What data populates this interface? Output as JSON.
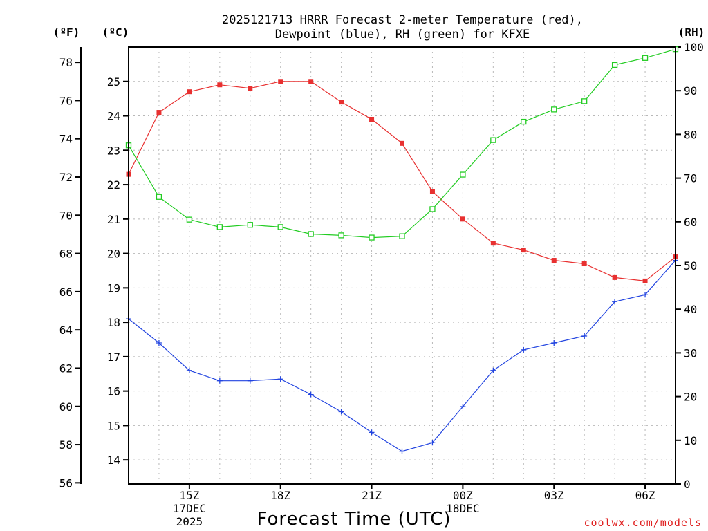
{
  "chart_data": {
    "type": "line",
    "title": [
      "2025121713 HRRR Forecast 2-meter Temperature (red),",
      "Dewpoint (blue), RH (green) for KFXE"
    ],
    "xlabel": "Forecast Time (UTC)",
    "credit": "coolwx.com/models",
    "unit_labels": {
      "fahrenheit": "(ºF)",
      "celsius": "(ºC)",
      "rh": "(RH)"
    },
    "x_hours": [
      13,
      14,
      15,
      16,
      17,
      18,
      19,
      20,
      21,
      22,
      23,
      24,
      25,
      26,
      27,
      28,
      29,
      30,
      31
    ],
    "x_range": [
      13,
      31
    ],
    "x_ticks": [
      {
        "hour": 15,
        "label": [
          "15Z",
          "17DEC",
          "2025"
        ]
      },
      {
        "hour": 18,
        "label": [
          "18Z"
        ]
      },
      {
        "hour": 21,
        "label": [
          "21Z"
        ]
      },
      {
        "hour": 24,
        "label": [
          "00Z",
          "18DEC"
        ]
      },
      {
        "hour": 27,
        "label": [
          "03Z"
        ]
      },
      {
        "hour": 30,
        "label": [
          "06Z"
        ]
      }
    ],
    "celsius_axis": {
      "range": [
        13.3,
        26.0
      ],
      "ticks": [
        14,
        15,
        16,
        17,
        18,
        19,
        20,
        21,
        22,
        23,
        24,
        25
      ]
    },
    "fahrenheit_axis": {
      "range": [
        55.94,
        78.8
      ],
      "ticks": [
        56,
        58,
        60,
        62,
        64,
        66,
        68,
        70,
        72,
        74,
        76,
        78
      ]
    },
    "rh_axis": {
      "range": [
        0,
        100
      ],
      "ticks": [
        0,
        10,
        20,
        30,
        40,
        50,
        60,
        70,
        80,
        90,
        100
      ]
    },
    "series": [
      {
        "name": "Temperature",
        "axis": "celsius",
        "color": "#e83030",
        "marker": "filled-square",
        "values": [
          22.3,
          24.1,
          24.7,
          24.9,
          24.8,
          25.0,
          25.0,
          24.4,
          23.9,
          23.2,
          21.8,
          21.0,
          20.3,
          20.1,
          19.8,
          19.7,
          19.3,
          19.2,
          19.9
        ]
      },
      {
        "name": "Dewpoint",
        "axis": "celsius",
        "color": "#2244e0",
        "marker": "plus",
        "values": [
          18.1,
          17.4,
          16.6,
          16.3,
          16.3,
          16.35,
          15.9,
          15.4,
          14.8,
          14.25,
          14.5,
          15.55,
          16.6,
          17.2,
          17.4,
          17.6,
          18.6,
          18.8,
          19.8
        ]
      },
      {
        "name": "RH",
        "axis": "rh",
        "color": "#22cc22",
        "marker": "open-square",
        "values": [
          77.5,
          65.7,
          60.5,
          58.8,
          59.3,
          58.8,
          57.2,
          56.9,
          56.4,
          56.7,
          62.9,
          70.8,
          78.7,
          82.9,
          85.7,
          87.6,
          95.9,
          97.5,
          99.5
        ]
      }
    ]
  }
}
